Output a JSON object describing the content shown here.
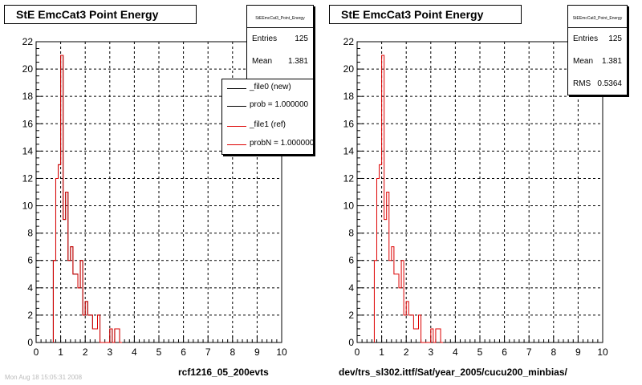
{
  "chart_data": [
    {
      "type": "histogram",
      "title": "StE EmcCat3 Point Energy",
      "xlim": [
        0,
        10
      ],
      "ylim": [
        0,
        22
      ],
      "x_ticks": [
        "0",
        "1",
        "2",
        "3",
        "4",
        "5",
        "6",
        "7",
        "8",
        "9",
        "10"
      ],
      "y_ticks": [
        "0",
        "2",
        "4",
        "6",
        "8",
        "10",
        "12",
        "14",
        "16",
        "18",
        "20",
        "22"
      ],
      "grid": true,
      "bin_width": 0.1,
      "bins_x": [
        0.7,
        0.8,
        0.9,
        1.0,
        1.1,
        1.2,
        1.3,
        1.4,
        1.5,
        1.6,
        1.7,
        1.8,
        1.9,
        2.0,
        2.1,
        2.2,
        2.3,
        2.4,
        2.5,
        2.6,
        2.7,
        2.8,
        2.9,
        3.0,
        3.1,
        3.2,
        3.3,
        3.4
      ],
      "series": [
        {
          "name": "_file0 (new)",
          "color": "#000000",
          "values": [
            6,
            12,
            13,
            21,
            9,
            11,
            6,
            7,
            5,
            5,
            4,
            6,
            2,
            3,
            2,
            2,
            1,
            1,
            2,
            0,
            0,
            0,
            0,
            1,
            0,
            1,
            1,
            0
          ]
        },
        {
          "name": "_file1 (ref)",
          "color": "#dd0000",
          "values": [
            6,
            12,
            13,
            21,
            9,
            11,
            6,
            7,
            5,
            5,
            4,
            6,
            2,
            3,
            2,
            2,
            1,
            1,
            2,
            0,
            0,
            0,
            0,
            1,
            0,
            1,
            1,
            0
          ]
        }
      ],
      "stats": {
        "name": "StEEmcCat3_Point_Energy",
        "entries_label": "Entries",
        "entries": "125",
        "mean_label": "Mean",
        "mean": "1.381"
      },
      "legend": {
        "placement": "top-right",
        "entries": [
          {
            "label": "_file0 (new)",
            "color": "#000000"
          },
          {
            "label": "prob = 1.000000",
            "color": "#000000"
          },
          {
            "label": "_file1 (ref)",
            "color": "#dd0000"
          },
          {
            "label": "probN = 1.000000",
            "color": "#dd0000"
          }
        ]
      },
      "footer": "rcf1216_05_200evts"
    },
    {
      "type": "histogram",
      "title": "StE EmcCat3 Point Energy",
      "xlim": [
        0,
        10
      ],
      "ylim": [
        0,
        22
      ],
      "x_ticks": [
        "0",
        "1",
        "2",
        "3",
        "4",
        "5",
        "6",
        "7",
        "8",
        "9",
        "10"
      ],
      "y_ticks": [
        "0",
        "2",
        "4",
        "6",
        "8",
        "10",
        "12",
        "14",
        "16",
        "18",
        "20",
        "22"
      ],
      "grid": true,
      "bin_width": 0.1,
      "bins_x": [
        0.7,
        0.8,
        0.9,
        1.0,
        1.1,
        1.2,
        1.3,
        1.4,
        1.5,
        1.6,
        1.7,
        1.8,
        1.9,
        2.0,
        2.1,
        2.2,
        2.3,
        2.4,
        2.5,
        2.6,
        2.7,
        2.8,
        2.9,
        3.0,
        3.1,
        3.2,
        3.3,
        3.4
      ],
      "series": [
        {
          "name": "",
          "color": "#dd0000",
          "values": [
            6,
            12,
            13,
            21,
            9,
            11,
            6,
            7,
            5,
            5,
            4,
            6,
            2,
            3,
            2,
            2,
            1,
            1,
            2,
            0,
            0,
            0,
            0,
            1,
            0,
            1,
            1,
            0
          ]
        }
      ],
      "stats": {
        "name": "StEEmcCat3_Point_Energy",
        "entries_label": "Entries",
        "entries": "125",
        "mean_label": "Mean",
        "mean": "1.381",
        "rms_label": "RMS",
        "rms": "0.5364"
      },
      "footer": "dev/trs_sl302.ittf/Sat/year_2005/cucu200_minbias/"
    }
  ],
  "timestamp": "Mon Aug 18 15:05:31 2008"
}
